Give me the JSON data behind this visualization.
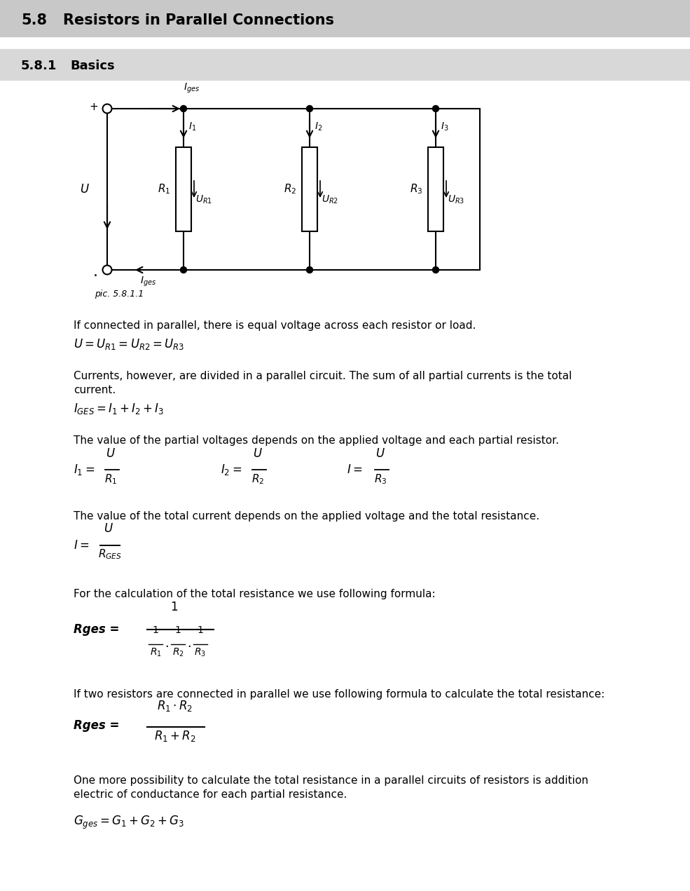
{
  "title1": "5.8",
  "title1_text": "Resistors in Parallel Connections",
  "title2": "5.8.1",
  "title2_text": "Basics",
  "pic_caption": "pic. 5.8.1.1",
  "bg_color": "#ffffff",
  "text_color": "#000000",
  "section1_text": "If connected in parallel, there is equal voltage across each resistor or load.",
  "section2_text1": "Currents, however, are divided in a parallel circuit. The sum of all partial currents is the total",
  "section2_text2": "current.",
  "section3_text": "The value of the partial voltages depends on the applied voltage and each partial resistor.",
  "section4_text": "The value of the total current depends on the applied voltage and the total resistance.",
  "section5_text": "For the calculation of the total resistance we use following formula:",
  "section6_text": "If two resistors are connected in parallel we use following formula to calculate the total resistance:",
  "section7_text1": "One more possibility to calculate the total resistance in a parallel circuits of resistors is addition",
  "section7_text2": "electric of conductance for each partial resistance.",
  "header1_color": "#c8c8c8",
  "header2_color": "#d8d8d8",
  "fig_width": 9.85,
  "fig_height": 12.71,
  "dpi": 100
}
